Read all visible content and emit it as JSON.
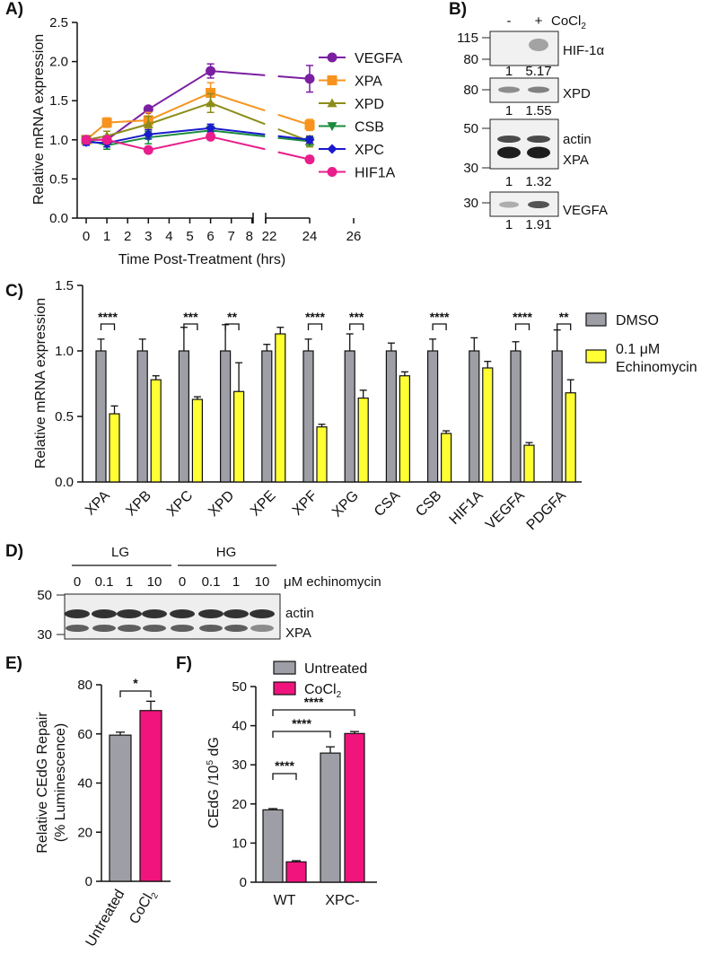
{
  "panel_labels": {
    "A": "A)",
    "B": "B)",
    "C": "C)",
    "D": "D)",
    "E": "E)",
    "F": "F)"
  },
  "colors": {
    "VEGFA": "#7b1fa2",
    "XPA": "#f7931e",
    "XPD": "#8c8c1a",
    "CSB": "#1a8c3c",
    "XPC": "#1a1acd",
    "HIF1A": "#e91e8c",
    "gray": "#9e9ea6",
    "yellow": "#ffff33",
    "pink": "#f0147c"
  },
  "chart_data": [
    {
      "panel": "A",
      "type": "line",
      "xlabel": "Time Post-Treatment (hrs)",
      "ylabel": "Relative mRNA expression",
      "ylim": [
        0,
        2.5
      ],
      "yticks": [
        "0.0",
        "0.5",
        "1.0",
        "1.5",
        "2.0",
        "2.5"
      ],
      "xticks": [
        "0",
        "1",
        "2",
        "3",
        "4",
        "5",
        "6",
        "7",
        "8",
        "22",
        "24",
        "26"
      ],
      "x": [
        0,
        1,
        3,
        6,
        24
      ],
      "series": [
        {
          "name": "VEGFA",
          "marker": "circle",
          "values": [
            1.0,
            1.0,
            1.39,
            1.88,
            1.78
          ],
          "err": [
            0.05,
            0.05,
            0.03,
            0.09,
            0.17
          ]
        },
        {
          "name": "XPA",
          "marker": "square",
          "values": [
            1.0,
            1.22,
            1.25,
            1.6,
            1.19
          ],
          "err": [
            0.05,
            0.06,
            0.1,
            0.13,
            0.07
          ]
        },
        {
          "name": "XPD",
          "marker": "triangle-up",
          "values": [
            1.0,
            1.05,
            1.2,
            1.47,
            0.98
          ],
          "err": [
            0.05,
            0.06,
            0.1,
            0.12,
            0.07
          ]
        },
        {
          "name": "CSB",
          "marker": "triangle-down",
          "values": [
            1.0,
            0.93,
            1.03,
            1.12,
            0.98
          ],
          "err": [
            0.05,
            0.05,
            0.08,
            0.06,
            0.05
          ]
        },
        {
          "name": "XPC",
          "marker": "diamond",
          "values": [
            0.97,
            0.96,
            1.07,
            1.15,
            1.0
          ],
          "err": [
            0.04,
            0.05,
            0.06,
            0.05,
            0.04
          ]
        },
        {
          "name": "HIF1A",
          "marker": "circle",
          "values": [
            1.0,
            1.0,
            0.87,
            1.04,
            0.75
          ],
          "err": [
            0.04,
            0.04,
            0.03,
            0.03,
            0.04
          ]
        }
      ]
    },
    {
      "panel": "C",
      "type": "bar",
      "ylabel": "Relative mRNA expression",
      "ylim": [
        0,
        1.5
      ],
      "yticks": [
        "0.0",
        "0.5",
        "1.0",
        "1.5"
      ],
      "categories": [
        "XPA",
        "XPB",
        "XPC",
        "XPD",
        "XPE",
        "XPF",
        "XPG",
        "CSA",
        "CSB",
        "HIF1A",
        "VEGFA",
        "PDGFA"
      ],
      "series": [
        {
          "name": "DMSO",
          "values": [
            1.0,
            1.0,
            1.0,
            1.0,
            1.0,
            1.0,
            1.0,
            1.0,
            1.0,
            1.0,
            1.0,
            1.0
          ],
          "err": [
            0.09,
            0.09,
            0.18,
            0.2,
            0.05,
            0.09,
            0.13,
            0.06,
            0.09,
            0.1,
            0.07,
            0.16
          ]
        },
        {
          "name": "0.1 μM Echinomycin",
          "values": [
            0.52,
            0.78,
            0.63,
            0.69,
            1.13,
            0.42,
            0.64,
            0.81,
            0.37,
            0.87,
            0.28,
            0.68
          ],
          "err": [
            0.06,
            0.03,
            0.02,
            0.22,
            0.05,
            0.02,
            0.06,
            0.03,
            0.02,
            0.05,
            0.02,
            0.1
          ]
        }
      ],
      "significance": [
        "****",
        "",
        "***",
        "**",
        "",
        "****",
        "***",
        "",
        "****",
        "",
        "****",
        "**"
      ]
    },
    {
      "panel": "E",
      "type": "bar",
      "ylabel": "Relative CEdG Repair",
      "ylabel2": "(% Luminescence)",
      "ylim": [
        0,
        80
      ],
      "yticks": [
        "0",
        "20",
        "40",
        "60",
        "80"
      ],
      "categories": [
        "Untreated",
        "CoCl2"
      ],
      "values": [
        59.5,
        69.5
      ],
      "err": [
        1.2,
        3.8
      ],
      "significance": "*"
    },
    {
      "panel": "F",
      "type": "bar",
      "ylabel": "CEdG /10",
      "ylabel_sup": "5",
      "ylabel_tail": " dG",
      "ylim": [
        0,
        50
      ],
      "yticks": [
        "0",
        "10",
        "20",
        "30",
        "40",
        "50"
      ],
      "categories": [
        "WT",
        "XPC-"
      ],
      "series": [
        {
          "name": "Untreated",
          "values": [
            18.5,
            33.0
          ],
          "err": [
            0.3,
            1.6
          ]
        },
        {
          "name": "CoCl2",
          "values": [
            5.2,
            38.0
          ],
          "err": [
            0.3,
            0.5
          ]
        }
      ],
      "significance": [
        "****",
        "****",
        "****"
      ]
    }
  ],
  "blot_B": {
    "header_minus": "-",
    "header_plus": "+",
    "treatment": "CoCl",
    "treatment_sub": "2",
    "strips": [
      {
        "label": "HIF-1α",
        "markers": [
          "115",
          "80"
        ],
        "quant": [
          "1",
          "5.17"
        ]
      },
      {
        "label": "XPD",
        "markers": [
          "80"
        ],
        "quant": [
          "1",
          "1.55"
        ]
      },
      {
        "label": "actin",
        "label2": "XPA",
        "markers": [
          "50",
          "30"
        ],
        "quant": [
          "1",
          "1.32"
        ]
      },
      {
        "label": "VEGFA",
        "markers": [
          "30"
        ],
        "quant": [
          "1",
          "1.91"
        ]
      }
    ]
  },
  "blot_D": {
    "group_LG": "LG",
    "group_HG": "HG",
    "doses": [
      "0",
      "0.1",
      "1",
      "10",
      "0",
      "0.1",
      "1",
      "10"
    ],
    "dose_unit": "μM echinomycin",
    "markers": [
      "50",
      "30"
    ],
    "bands": [
      "actin",
      "XPA"
    ]
  },
  "legend_C": {
    "dmso": "DMSO",
    "echino_1": "0.1 μM",
    "echino_2": "Echinomycin"
  },
  "legend_F": {
    "untreated": "Untreated",
    "cocl": "CoCl",
    "cocl_sub": "2"
  },
  "labels_E": {
    "untreated": "Untreated",
    "cocl": "CoCl",
    "cocl_sub": "2"
  }
}
